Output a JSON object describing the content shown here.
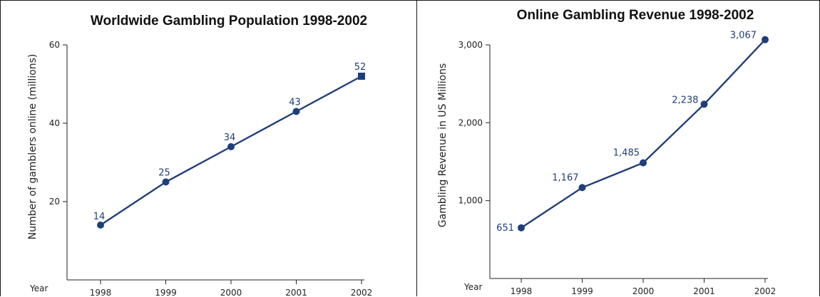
{
  "chart_data": [
    {
      "type": "line",
      "title": "Worldwide Gambling Population 1998-2002",
      "xlabel": "Year",
      "ylabel": "Number of gamblers online (millions)",
      "categories": [
        "1998",
        "1999",
        "2000",
        "2001",
        "2002"
      ],
      "values": [
        14,
        25,
        34,
        43,
        52
      ],
      "data_labels": [
        "14",
        "25",
        "34",
        "43",
        "52"
      ],
      "ylim": [
        0,
        60
      ],
      "y_ticks": [
        20,
        40,
        60
      ],
      "y_tick_labels": [
        "20",
        "40",
        "60"
      ],
      "grid": false,
      "marker_last": "square",
      "line_color": "#1f3f7a"
    },
    {
      "type": "line",
      "title": "Online Gambling Revenue 1998-2002",
      "xlabel": "Year",
      "ylabel": "Gambling Revenue in US Millions",
      "categories": [
        "1998",
        "1999",
        "2000",
        "2001",
        "2002"
      ],
      "values": [
        651,
        1167,
        1485,
        2238,
        3067
      ],
      "data_labels": [
        "651",
        "1,167",
        "1,485",
        "2,238",
        "3,067"
      ],
      "ylim": [
        0,
        3000
      ],
      "y_ticks": [
        1000,
        2000,
        3000
      ],
      "y_tick_labels": [
        "1,000",
        "2,000",
        "3,000"
      ],
      "grid": false,
      "marker_last": "circle",
      "line_color": "#1f3f7a"
    }
  ]
}
